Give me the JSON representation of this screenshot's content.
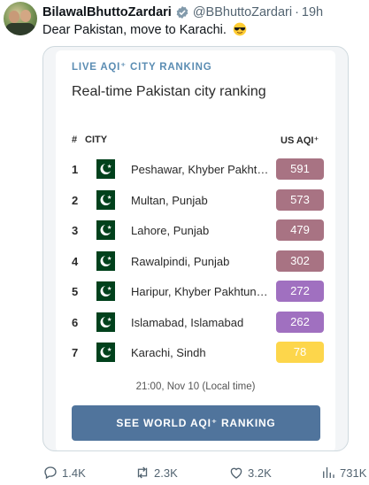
{
  "tweet": {
    "display_name": "BilawalBhuttoZardari",
    "handle": "@BBhuttoZardari",
    "separator": "·",
    "time": "19h",
    "text": "Dear Pakistan, move to Karachi.",
    "emoji_icon": "sunglasses-emoji-icon"
  },
  "card": {
    "kicker": "LIVE AQI⁺ CITY RANKING",
    "title": "Real-time Pakistan city ranking",
    "columns": {
      "rank": "#",
      "city": "CITY",
      "aqi": "US AQI⁺"
    },
    "rows": [
      {
        "rank": "1",
        "city": "Peshawar, Khyber Pakht…",
        "aqi": "591",
        "color": "#a87383"
      },
      {
        "rank": "2",
        "city": "Multan, Punjab",
        "aqi": "573",
        "color": "#a87383"
      },
      {
        "rank": "3",
        "city": "Lahore, Punjab",
        "aqi": "479",
        "color": "#a87383"
      },
      {
        "rank": "4",
        "city": "Rawalpindi, Punjab",
        "aqi": "302",
        "color": "#a87383"
      },
      {
        "rank": "5",
        "city": "Haripur, Khyber Pakhtun…",
        "aqi": "272",
        "color": "#a070c0"
      },
      {
        "rank": "6",
        "city": "Islamabad, Islamabad",
        "aqi": "262",
        "color": "#a070c0"
      },
      {
        "rank": "7",
        "city": "Karachi, Sindh",
        "aqi": "78",
        "color": "#fdd64b"
      }
    ],
    "timestamp": "21:00, Nov 10 (Local time)",
    "cta": "SEE WORLD AQI⁺ RANKING",
    "flag_icon": "pakistan-flag-icon"
  },
  "actions": {
    "replies": "1.4K",
    "reposts": "2.3K",
    "likes": "3.2K",
    "views": "731K"
  },
  "colors": {
    "accent": "#1d9bf0",
    "kicker": "#5b8db3",
    "cta": "#50749c",
    "muted": "#536471"
  }
}
